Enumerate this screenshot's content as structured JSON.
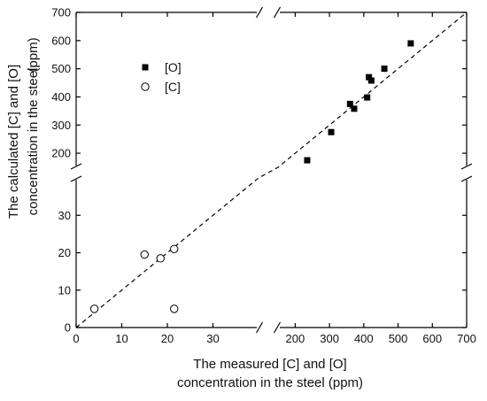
{
  "chart_data": {
    "type": "scatter",
    "xlabel": [
      "The measured [C] and [O]",
      "concentration in the steel (ppm)"
    ],
    "ylabel": [
      "The calculated [C] and [O]",
      "concentration in the steel"
    ],
    "ylabel_unit": "(ppm)",
    "x_axis": {
      "segments": [
        {
          "range": [
            0,
            40
          ],
          "ticks": [
            0,
            10,
            20,
            30
          ]
        },
        {
          "range": [
            150,
            700
          ],
          "ticks": [
            200,
            300,
            400,
            500,
            600,
            700
          ]
        }
      ]
    },
    "y_axis": {
      "segments": [
        {
          "range": [
            0,
            40
          ],
          "ticks": [
            0,
            10,
            20,
            30
          ]
        },
        {
          "range": [
            150,
            700
          ],
          "ticks": [
            200,
            300,
            400,
            500,
            600,
            700
          ]
        }
      ]
    },
    "grid": false,
    "legend": {
      "position": "top-left"
    },
    "reference_line": {
      "style": "dashed",
      "slope": 1
    },
    "series": [
      {
        "name": "[O]",
        "marker": "filled-square",
        "color": "#000000",
        "points": [
          {
            "x": 235,
            "y": 175
          },
          {
            "x": 305,
            "y": 275
          },
          {
            "x": 360,
            "y": 375
          },
          {
            "x": 372,
            "y": 358
          },
          {
            "x": 410,
            "y": 398
          },
          {
            "x": 415,
            "y": 470
          },
          {
            "x": 422,
            "y": 458
          },
          {
            "x": 460,
            "y": 500
          },
          {
            "x": 537,
            "y": 590
          }
        ]
      },
      {
        "name": "[C]",
        "marker": "open-circle",
        "color": "#000000",
        "points": [
          {
            "x": 4,
            "y": 5
          },
          {
            "x": 15,
            "y": 19.5
          },
          {
            "x": 18.5,
            "y": 18.5
          },
          {
            "x": 21.5,
            "y": 21
          },
          {
            "x": 21.5,
            "y": 5
          }
        ]
      }
    ]
  }
}
